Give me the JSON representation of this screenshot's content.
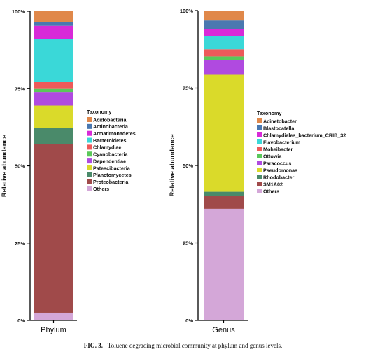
{
  "caption": {
    "label": "FIG. 3.",
    "text": "Toluene degrading microbial community at phylum and genus levels."
  },
  "chart_data": [
    {
      "type": "bar",
      "stacked": true,
      "categories": [
        "Phylum"
      ],
      "ylabel": "Relative abundance",
      "ylim": [
        0,
        100
      ],
      "yticks": [
        "0%",
        "25%",
        "50%",
        "75%",
        "100%"
      ],
      "legend_title": "Taxonomy",
      "legend_position": "right",
      "series": [
        {
          "name": "Others",
          "color": "#d4a7d8",
          "values": [
            2.5
          ]
        },
        {
          "name": "Proteobacteria",
          "color": "#a04a4a",
          "values": [
            54.5
          ]
        },
        {
          "name": "Planctomycetes",
          "color": "#4a8a6a",
          "values": [
            5.3
          ]
        },
        {
          "name": "Patescibacteria",
          "color": "#dada2a",
          "values": [
            7.2
          ]
        },
        {
          "name": "Dependentiae",
          "color": "#b04ae0",
          "values": [
            4.4
          ]
        },
        {
          "name": "Cyanobacteria",
          "color": "#5ac85a",
          "values": [
            1.0
          ]
        },
        {
          "name": "Chlamydiae",
          "color": "#ee5a5a",
          "values": [
            2.2
          ]
        },
        {
          "name": "Bacteroidetes",
          "color": "#3ad8d8",
          "values": [
            14.0
          ]
        },
        {
          "name": "Armatimonadetes",
          "color": "#d82ad8",
          "values": [
            4.2
          ]
        },
        {
          "name": "Actinobacteria",
          "color": "#4a78b0",
          "values": [
            1.2
          ]
        },
        {
          "name": "Acidobacteria",
          "color": "#e0884a",
          "values": [
            3.5
          ]
        }
      ]
    },
    {
      "type": "bar",
      "stacked": true,
      "categories": [
        "Genus"
      ],
      "ylabel": "Relative abundance",
      "ylim": [
        0,
        100
      ],
      "yticks": [
        "0%",
        "25%",
        "50%",
        "75%",
        "100%"
      ],
      "legend_title": "Taxonomy",
      "legend_position": "right",
      "series": [
        {
          "name": "Others",
          "color": "#d4a7d8",
          "values": [
            36.0
          ]
        },
        {
          "name": "SM1A02",
          "color": "#a04a4a",
          "values": [
            4.2
          ]
        },
        {
          "name": "Rhodobacter",
          "color": "#4a8a6a",
          "values": [
            1.3
          ]
        },
        {
          "name": "Pseudomonas",
          "color": "#dada2a",
          "values": [
            37.8
          ]
        },
        {
          "name": "Paracoccus",
          "color": "#b04ae0",
          "values": [
            4.7
          ]
        },
        {
          "name": "Ottowia",
          "color": "#5ac85a",
          "values": [
            1.2
          ]
        },
        {
          "name": "Moheibacter",
          "color": "#ee5a5a",
          "values": [
            2.3
          ]
        },
        {
          "name": "Flavobacterium",
          "color": "#3ad8d8",
          "values": [
            4.3
          ]
        },
        {
          "name": "Chlamydiales_bacterium_CRIB_32",
          "color": "#d82ad8",
          "values": [
            2.2
          ]
        },
        {
          "name": "Blastocatella",
          "color": "#4a78b0",
          "values": [
            2.8
          ]
        },
        {
          "name": "Acinetobacter",
          "color": "#e0884a",
          "values": [
            3.2
          ]
        }
      ]
    }
  ]
}
